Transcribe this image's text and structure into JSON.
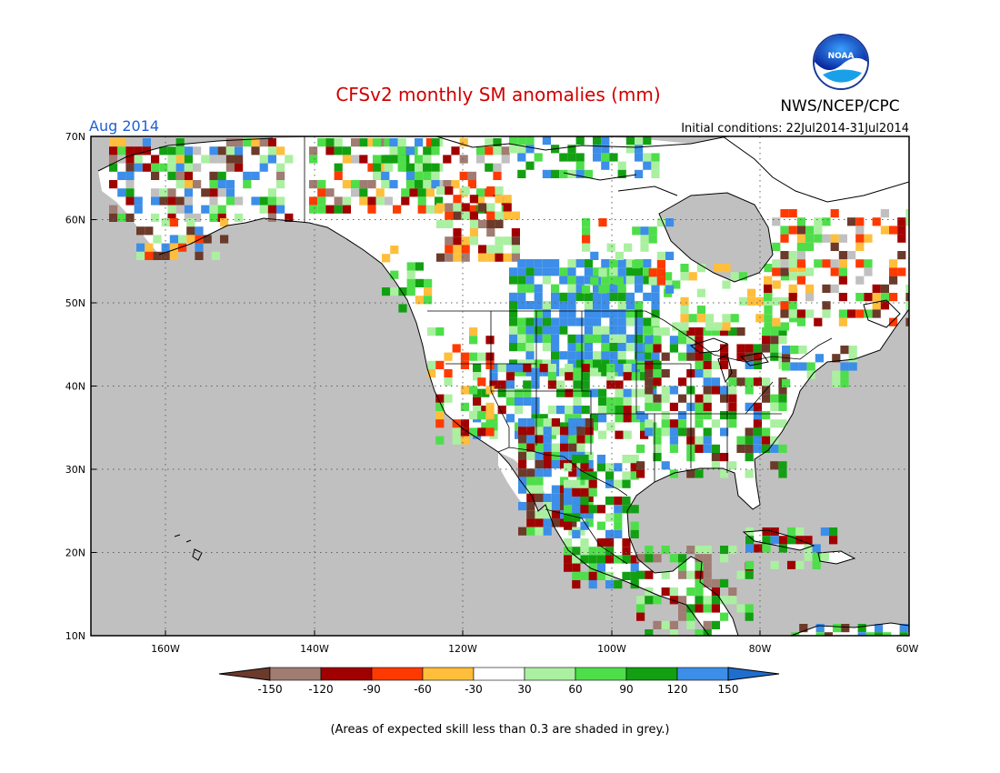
{
  "title": "CFSv2 monthly SM anomalies (mm)",
  "agency": "NWS/NCEP/CPC",
  "logo_text": "NOAA",
  "month_label": "Aug 2014",
  "initial_conditions": "Initial conditions: 22Jul2014-31Jul2014",
  "footnote": "(Areas of expected skill less than 0.3 are shaded in grey.)",
  "map": {
    "lon_range": [
      -172,
      -60
    ],
    "lat_range": [
      10,
      70
    ],
    "lat_ticks": [
      "70N",
      "60N",
      "50N",
      "40N",
      "30N",
      "20N",
      "10N"
    ],
    "lon_ticks": [
      "160W",
      "140W",
      "120W",
      "100W",
      "80W",
      "60W"
    ],
    "grid": "dotted",
    "colors": {
      "no_skill": "#c0c0c0",
      "ocean": "#c0c0c0",
      "neutral": "#ffffff",
      "coast": "#000000",
      "title": "#d00000",
      "month": "#1e60d8"
    }
  },
  "legend": {
    "tick_labels": [
      "-150",
      "-120",
      "-90",
      "-60",
      "-30",
      "30",
      "60",
      "90",
      "120",
      "150"
    ],
    "bins": [
      {
        "range": "< -150",
        "color": "#6b3a2a"
      },
      {
        "range": "-150 to -120",
        "color": "#a07c72"
      },
      {
        "range": "-120 to -90",
        "color": "#a00000"
      },
      {
        "range": "-90 to -60",
        "color": "#ff3a00"
      },
      {
        "range": "-60 to -30",
        "color": "#ffbe3c"
      },
      {
        "range": "-30 to 30",
        "color": "#ffffff"
      },
      {
        "range": "30 to 60",
        "color": "#aaf0a0"
      },
      {
        "range": "60 to 90",
        "color": "#4ede4a"
      },
      {
        "range": "90 to 120",
        "color": "#12a012"
      },
      {
        "range": "120 to 150",
        "color": "#3c8ee8"
      },
      {
        "range": "> 150",
        "color": "#1e6ed0"
      }
    ]
  }
}
